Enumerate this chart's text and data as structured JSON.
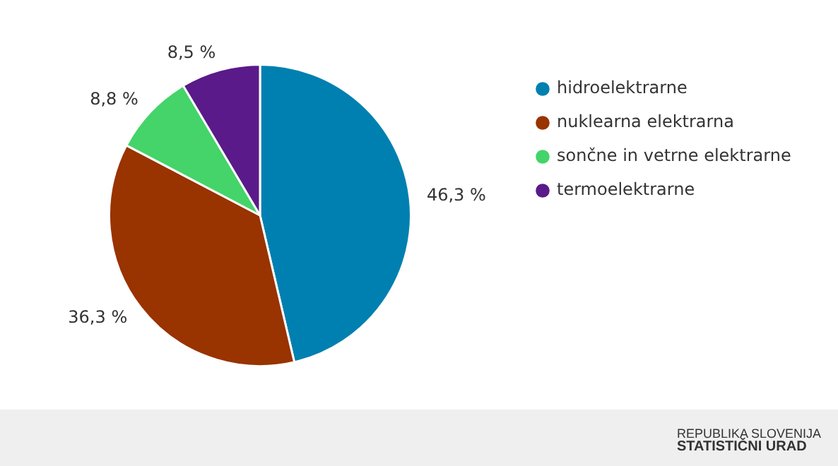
{
  "chart_data": {
    "type": "pie",
    "categories": [
      "hidroelektrarne",
      "nuklearna elektrarna",
      "sončne in vetrne elektrarne",
      "termoelektrarne"
    ],
    "values": [
      46.3,
      36.3,
      8.8,
      8.5
    ],
    "colors": [
      "#0080b0",
      "#993300",
      "#44d46a",
      "#5a1a8a"
    ],
    "value_labels": [
      "46,3 %",
      "36,3 %",
      "8,8 %",
      "8,5 %"
    ],
    "legend": "right",
    "annotations": [
      "REPUBLIKA SLOVENIJA",
      "STATISTIČNI URAD"
    ]
  }
}
